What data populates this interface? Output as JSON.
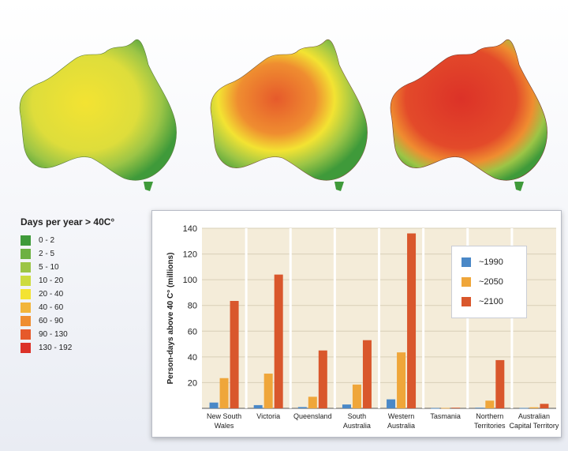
{
  "legend": {
    "title": "Days per year > 40C°",
    "items": [
      {
        "label": "0 - 2",
        "color": "#3f9a3a"
      },
      {
        "label": "2 - 5",
        "color": "#6eb142"
      },
      {
        "label": "5 - 10",
        "color": "#9cc546"
      },
      {
        "label": "10 - 20",
        "color": "#cddb3f"
      },
      {
        "label": "20 - 40",
        "color": "#f3e332"
      },
      {
        "label": "40 - 60",
        "color": "#f2b53a"
      },
      {
        "label": "60 - 90",
        "color": "#ef8d30"
      },
      {
        "label": "90 - 130",
        "color": "#e65a2b"
      },
      {
        "label": "130 - 192",
        "color": "#dc3228"
      }
    ]
  },
  "chart_data": {
    "type": "bar",
    "ylabel": "Person-days above 40 C° (millions)",
    "ylim": [
      0,
      140
    ],
    "yticks": [
      "20",
      "40",
      "60",
      "80",
      "100",
      "120",
      "140"
    ],
    "grid": true,
    "legend_position": "top-right",
    "categories": [
      [
        "New South",
        "Wales"
      ],
      [
        "Victoria"
      ],
      [
        "Queensland"
      ],
      [
        "South",
        "Australia"
      ],
      [
        "Western",
        "Australia"
      ],
      [
        "Tasmania"
      ],
      [
        "Northern",
        "Territories"
      ],
      [
        "Australian",
        "Capital Territory"
      ]
    ],
    "series": [
      {
        "name": "~1990",
        "color": "#4a88c7",
        "values": [
          4.5,
          2.5,
          1.0,
          3.0,
          7.0,
          0.2,
          0.5,
          0.3
        ]
      },
      {
        "name": "~2050",
        "color": "#efa63a",
        "values": [
          23.5,
          27.0,
          9.0,
          18.5,
          43.5,
          0.3,
          6.0,
          0.8
        ]
      },
      {
        "name": "~2100",
        "color": "#d9572c",
        "values": [
          83.5,
          104.0,
          45.0,
          53.0,
          136.0,
          0.5,
          37.5,
          3.5
        ]
      }
    ]
  }
}
